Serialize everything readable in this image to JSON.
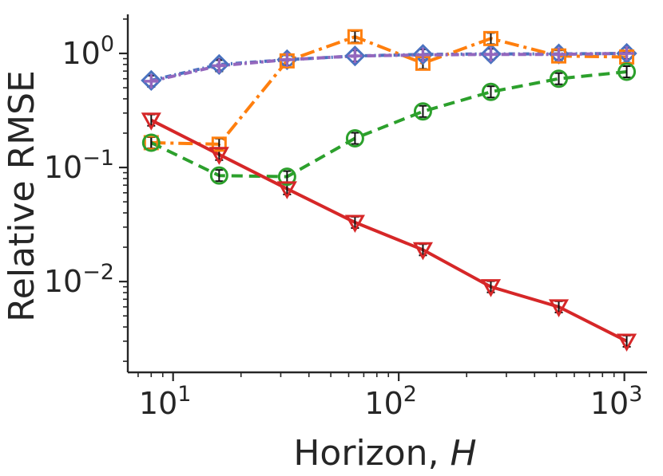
{
  "chart_data": {
    "type": "line",
    "title": "",
    "xlabel": "Horizon, ",
    "xlabel_italic": "H",
    "ylabel": "Relative RMSE",
    "xscale": "log",
    "yscale": "log",
    "xlim": [
      6.3,
      1260
    ],
    "ylim": [
      0.0016,
      2.2
    ],
    "grid": false,
    "legend": "none",
    "x_ticks": [
      {
        "value": 10,
        "base": "10",
        "exp": "1"
      },
      {
        "value": 100,
        "base": "10",
        "exp": "2"
      },
      {
        "value": 1000,
        "base": "10",
        "exp": "3"
      }
    ],
    "y_ticks": [
      {
        "value": 1,
        "base": "10",
        "exp": "0"
      },
      {
        "value": 0.1,
        "base": "10",
        "exp": "−1"
      },
      {
        "value": 0.01,
        "base": "10",
        "exp": "−2"
      }
    ],
    "x": [
      8,
      16,
      32,
      64,
      128,
      256,
      512,
      1024
    ],
    "series": [
      {
        "name": "blue-diamond",
        "color": "#4a72c0",
        "dash": "8 4 2 4",
        "marker": "diamond",
        "values": [
          0.58,
          0.8,
          0.88,
          0.95,
          0.98,
          0.99,
          0.99,
          1.0
        ]
      },
      {
        "name": "orange-square",
        "color": "#ff7f0e",
        "dash": "18 6 4 6",
        "marker": "square",
        "values": [
          0.165,
          0.16,
          0.86,
          1.4,
          0.82,
          1.35,
          0.95,
          0.93
        ]
      },
      {
        "name": "purple-plus",
        "color": "#9467bd",
        "dash": "10 4 3 4",
        "marker": "plus",
        "values": [
          0.57,
          0.78,
          0.88,
          0.95,
          0.97,
          0.98,
          0.98,
          1.0
        ]
      },
      {
        "name": "green-circle",
        "color": "#2ca02c",
        "dash": "14 8",
        "marker": "circle",
        "values": [
          0.165,
          0.085,
          0.083,
          0.18,
          0.31,
          0.46,
          0.6,
          0.69
        ]
      },
      {
        "name": "red-triangle",
        "color": "#d62728",
        "dash": "",
        "marker": "triangle",
        "values": [
          0.26,
          0.13,
          0.065,
          0.033,
          0.019,
          0.009,
          0.006,
          0.003
        ]
      }
    ]
  }
}
